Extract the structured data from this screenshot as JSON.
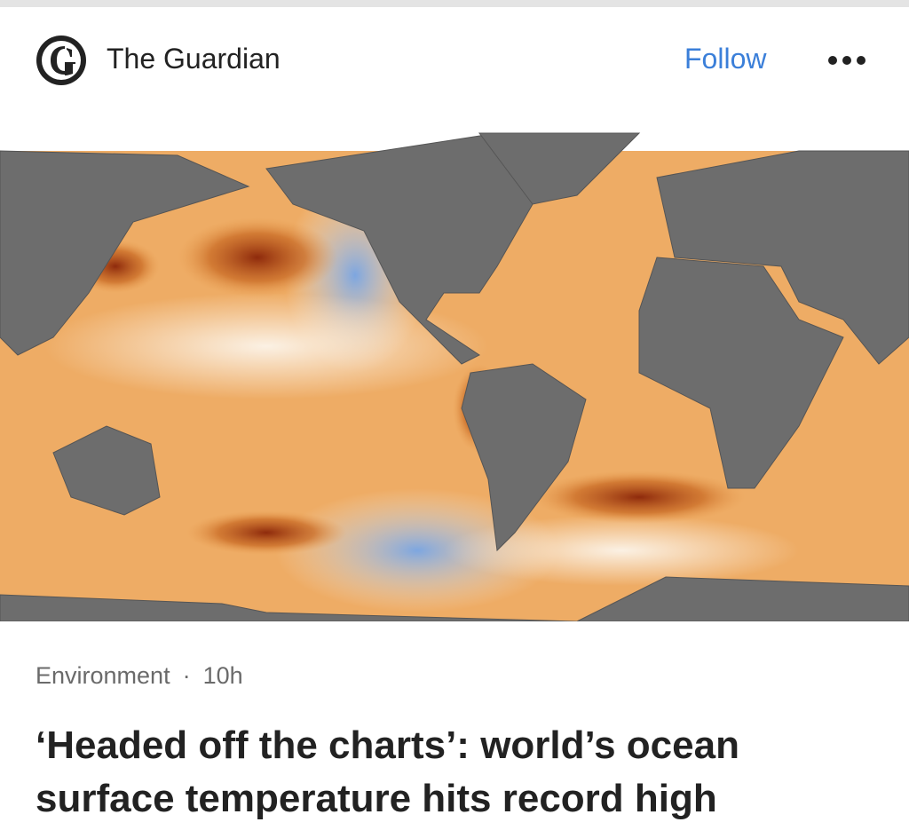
{
  "header": {
    "source": "The Guardian",
    "follow": "Follow"
  },
  "meta": {
    "section": "Environment",
    "separator": "·",
    "time": "10h"
  },
  "headline": "‘Headed off the charts’: world’s ocean surface temperature hits record high"
}
